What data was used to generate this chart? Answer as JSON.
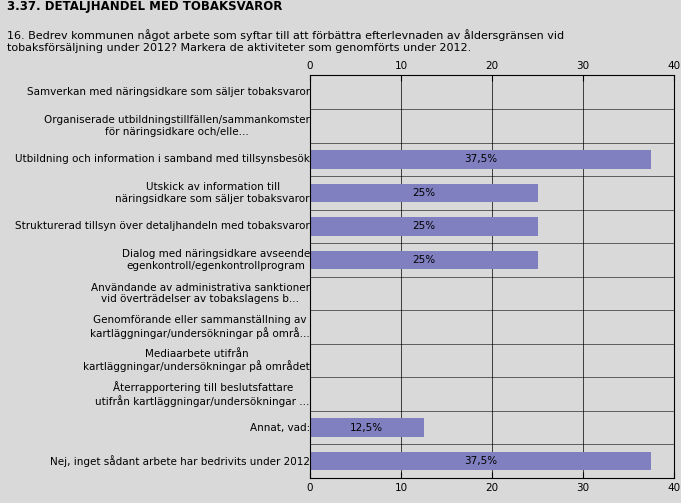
{
  "title": "3.37. DETALJHANDEL MED TOBAKSVAROR",
  "subtitle": "16. Bedrev kommunen något arbete som syftar till att förbättra efterlevnaden av åldersgränsen vid\ntobaksförsäljning under 2012? Markera de aktiviteter som genomförts under 2012.",
  "categories": [
    "Samverkan med näringsidkare som säljer tobaksvaror",
    "Organiserade utbildningstillfällen/sammankomster\nför näringsidkare och/elle...",
    "Utbildning och information i samband med tillsynsbesök",
    "Utskick av information till\nnäringsidkare som säljer tobaksvaror",
    "Strukturerad tillsyn över detaljhandeln med tobaksvaror",
    "Dialog med näringsidkare avseende\negenkontroll/egenkontrollprogram",
    "Användande av administrativa sanktioner\nvid överträdelser av tobakslagens b...",
    "Genomförande eller sammanställning av\nkartläggningar/undersökningar på områ...",
    "Mediaarbete utifrån\nkartläggningar/undersökningar på området",
    "Återrapportering till beslutsfattare\nutifrån kartläggningar/undersökningar ...",
    "Annat, vad:",
    "Nej, inget sådant arbete har bedrivits under 2012"
  ],
  "values": [
    0,
    0,
    37.5,
    25,
    25,
    25,
    0,
    0,
    0,
    0,
    12.5,
    37.5
  ],
  "labels": [
    "",
    "",
    "37,5%",
    "25%",
    "25%",
    "25%",
    "",
    "",
    "",
    "",
    "12,5%",
    "37,5%"
  ],
  "bar_color": "#8080c0",
  "bg_color": "#d9d9d9",
  "xlim": [
    0,
    40
  ],
  "xticks": [
    0,
    10,
    20,
    30,
    40
  ],
  "title_fontsize": 8.5,
  "subtitle_fontsize": 8.0,
  "label_fontsize": 7.5,
  "bar_label_fontsize": 7.5
}
